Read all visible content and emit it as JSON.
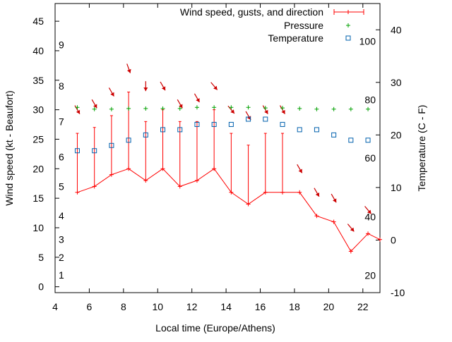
{
  "chart_data": {
    "type": "line",
    "xlabel": "Local time (Europe/Athens)",
    "ylabel": "Wind speed (kt - Beaufort)",
    "y2label": "Temperature (C - F)",
    "xlim": [
      4,
      23
    ],
    "ylim": [
      -1,
      48
    ],
    "y2lim": [
      -10,
      45
    ],
    "x_ticks": [
      4,
      6,
      8,
      10,
      12,
      14,
      16,
      18,
      20,
      22
    ],
    "y_ticks": [
      0,
      5,
      10,
      15,
      20,
      25,
      30,
      35,
      40,
      45
    ],
    "y2_ticks": [
      -10,
      0,
      10,
      20,
      30,
      40
    ],
    "beaufort_scale": [
      {
        "label": "1",
        "kt": 2
      },
      {
        "label": "2",
        "kt": 5
      },
      {
        "label": "3",
        "kt": 8
      },
      {
        "label": "4",
        "kt": 12
      },
      {
        "label": "5",
        "kt": 17
      },
      {
        "label": "6",
        "kt": 22
      },
      {
        "label": "7",
        "kt": 28
      },
      {
        "label": "8",
        "kt": 34
      },
      {
        "label": "9",
        "kt": 41
      }
    ],
    "fahrenheit_scale": [
      {
        "label": "20",
        "degC": -6.7
      },
      {
        "label": "40",
        "degC": 4.4
      },
      {
        "label": "60",
        "degC": 15.6
      },
      {
        "label": "80",
        "degC": 26.7
      },
      {
        "label": "100",
        "degC": 37.8
      }
    ],
    "legend_position": "top-right",
    "grid": false,
    "colors": {
      "wind": "#ff0000",
      "direction_arrow": "#cc0000",
      "pressure": "#00a000",
      "temperature": "#0060ad"
    },
    "series": [
      {
        "name": "Wind speed, gusts, and direction",
        "x": [
          5.3,
          6.3,
          7.3,
          8.3,
          9.3,
          10.3,
          11.3,
          12.3,
          13.3,
          14.3,
          15.3,
          16.3,
          17.3,
          18.3,
          19.3,
          20.3,
          21.3,
          22.3,
          23
        ],
        "speed": [
          16,
          17,
          19,
          20,
          18,
          20,
          17,
          18,
          20,
          16,
          14,
          16,
          16,
          16,
          12,
          11,
          6,
          9,
          8
        ],
        "gust": [
          26,
          27,
          29,
          33,
          28,
          30,
          28,
          28,
          30,
          26,
          24,
          26,
          26,
          null,
          null,
          null,
          null,
          null,
          null
        ],
        "direction_deg": [
          330,
          330,
          330,
          340,
          0,
          330,
          330,
          330,
          320,
          320,
          330,
          330,
          330,
          330,
          330,
          330,
          320,
          320,
          null
        ],
        "arrow_y": [
          30,
          31,
          33,
          37,
          34,
          34,
          31,
          32,
          34,
          30,
          29,
          30,
          30,
          20,
          16,
          15,
          10,
          13,
          null
        ]
      },
      {
        "name": "Pressure",
        "x": [
          5.3,
          6.3,
          7.3,
          8.3,
          9.3,
          10.3,
          11.3,
          12.3,
          13.3,
          14.3,
          15.3,
          16.3,
          17.3,
          18.3,
          19.3,
          20.3,
          21.3,
          22.3
        ],
        "y": [
          30.4,
          30.1,
          30.1,
          30.2,
          30.2,
          30.2,
          30.2,
          30.4,
          30.4,
          30.4,
          30.4,
          30.3,
          30.3,
          30.2,
          30.1,
          30.1,
          30.1,
          30.1
        ]
      },
      {
        "name": "Temperature",
        "x": [
          5.3,
          6.3,
          7.3,
          8.3,
          9.3,
          10.3,
          11.3,
          12.3,
          13.3,
          14.3,
          15.3,
          16.3,
          17.3,
          18.3,
          19.3,
          20.3,
          21.3,
          22.3
        ],
        "y": [
          17,
          17,
          18,
          19,
          20,
          21,
          21,
          22,
          22,
          22,
          23,
          23,
          22,
          21,
          21,
          20,
          19,
          19
        ]
      }
    ]
  }
}
